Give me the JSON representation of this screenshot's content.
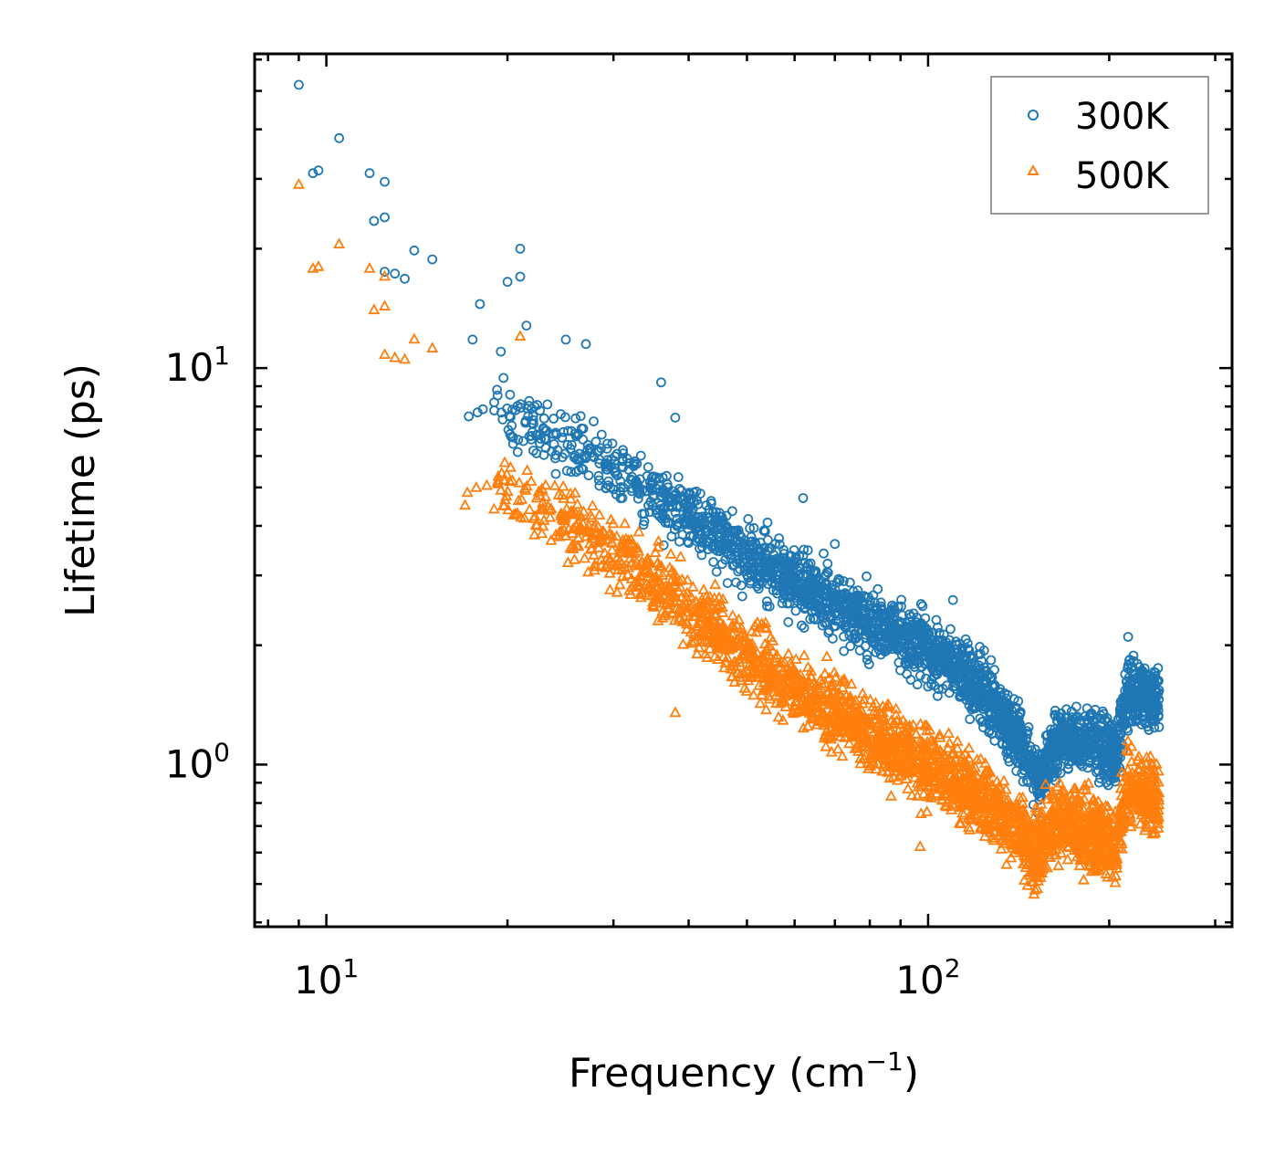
{
  "chart_data": {
    "type": "scatter",
    "title": "",
    "xlabel": "Frequency (cm",
    "xlabel_exponent": "−1",
    "xlabel_close": ")",
    "ylabel": "Lifetime (ps)",
    "xscale": "log",
    "yscale": "log",
    "xlim": [
      7.6,
      320
    ],
    "ylim": [
      0.39,
      62
    ],
    "grid": false,
    "legend_position": "top-right",
    "x_ticks": [
      {
        "base": "10",
        "exp": "1",
        "value": 10
      },
      {
        "base": "10",
        "exp": "2",
        "value": 100
      }
    ],
    "y_ticks": [
      {
        "base": "10",
        "exp": "0",
        "value": 1
      },
      {
        "base": "10",
        "exp": "1",
        "value": 10
      }
    ],
    "series": [
      {
        "name": "300K",
        "marker": "circle",
        "color": "#1f77b4",
        "anchor_points": [
          {
            "x": 9.0,
            "y": 51.8
          },
          {
            "x": 9.5,
            "y": 31.0
          },
          {
            "x": 9.7,
            "y": 31.5
          },
          {
            "x": 10.5,
            "y": 38.0
          },
          {
            "x": 11.8,
            "y": 31.0
          },
          {
            "x": 12.5,
            "y": 29.5
          },
          {
            "x": 12.0,
            "y": 23.5
          },
          {
            "x": 12.5,
            "y": 24.0
          },
          {
            "x": 12.5,
            "y": 17.5
          },
          {
            "x": 13.0,
            "y": 17.3
          },
          {
            "x": 13.5,
            "y": 16.8
          },
          {
            "x": 14.0,
            "y": 19.8
          },
          {
            "x": 15.0,
            "y": 18.8
          },
          {
            "x": 18.0,
            "y": 14.5
          },
          {
            "x": 17.5,
            "y": 11.8
          },
          {
            "x": 19.5,
            "y": 11.0
          },
          {
            "x": 20.0,
            "y": 16.5
          },
          {
            "x": 21.0,
            "y": 20.0
          },
          {
            "x": 21.0,
            "y": 17.0
          },
          {
            "x": 21.5,
            "y": 12.8
          },
          {
            "x": 25.0,
            "y": 11.8
          },
          {
            "x": 27.0,
            "y": 11.5
          },
          {
            "x": 36.0,
            "y": 9.2
          },
          {
            "x": 38.0,
            "y": 7.5
          },
          {
            "x": 62.0,
            "y": 4.7
          },
          {
            "x": 70.0,
            "y": 3.6
          },
          {
            "x": 110.0,
            "y": 2.6
          },
          {
            "x": 215.0,
            "y": 2.1
          }
        ],
        "trend": [
          {
            "x": 17,
            "y": 8.5
          },
          {
            "x": 25,
            "y": 6.5
          },
          {
            "x": 35,
            "y": 4.8
          },
          {
            "x": 50,
            "y": 3.4
          },
          {
            "x": 70,
            "y": 2.55
          },
          {
            "x": 100,
            "y": 1.95
          },
          {
            "x": 120,
            "y": 1.6
          },
          {
            "x": 140,
            "y": 1.2
          },
          {
            "x": 155,
            "y": 0.9
          },
          {
            "x": 162,
            "y": 1.15
          },
          {
            "x": 190,
            "y": 1.15
          },
          {
            "x": 205,
            "y": 1.05
          },
          {
            "x": 215,
            "y": 1.55
          },
          {
            "x": 240,
            "y": 1.45
          }
        ],
        "x_range": [
          17,
          242
        ],
        "scatter_factor": 1.22
      },
      {
        "name": "500K",
        "marker": "triangle",
        "color": "#ff7f0e",
        "anchor_points": [
          {
            "x": 9.0,
            "y": 29.0
          },
          {
            "x": 9.5,
            "y": 17.8
          },
          {
            "x": 9.7,
            "y": 18.0
          },
          {
            "x": 10.5,
            "y": 20.5
          },
          {
            "x": 11.8,
            "y": 17.8
          },
          {
            "x": 12.5,
            "y": 17.0
          },
          {
            "x": 12.0,
            "y": 14.0
          },
          {
            "x": 12.5,
            "y": 14.3
          },
          {
            "x": 12.5,
            "y": 10.8
          },
          {
            "x": 13.0,
            "y": 10.6
          },
          {
            "x": 13.5,
            "y": 10.5
          },
          {
            "x": 14.0,
            "y": 11.8
          },
          {
            "x": 15.0,
            "y": 11.2
          },
          {
            "x": 17.0,
            "y": 4.5
          },
          {
            "x": 19.0,
            "y": 4.4
          },
          {
            "x": 21.0,
            "y": 12.0
          },
          {
            "x": 38.0,
            "y": 1.35
          },
          {
            "x": 97.0,
            "y": 0.62
          },
          {
            "x": 150.0,
            "y": 0.47
          }
        ],
        "trend": [
          {
            "x": 17,
            "y": 5.6
          },
          {
            "x": 25,
            "y": 4.1
          },
          {
            "x": 35,
            "y": 2.9
          },
          {
            "x": 50,
            "y": 1.85
          },
          {
            "x": 70,
            "y": 1.35
          },
          {
            "x": 100,
            "y": 0.98
          },
          {
            "x": 130,
            "y": 0.78
          },
          {
            "x": 150,
            "y": 0.6
          },
          {
            "x": 165,
            "y": 0.74
          },
          {
            "x": 190,
            "y": 0.65
          },
          {
            "x": 205,
            "y": 0.62
          },
          {
            "x": 215,
            "y": 0.88
          },
          {
            "x": 240,
            "y": 0.82
          }
        ],
        "x_range": [
          17,
          242
        ],
        "scatter_factor": 1.25
      }
    ]
  }
}
